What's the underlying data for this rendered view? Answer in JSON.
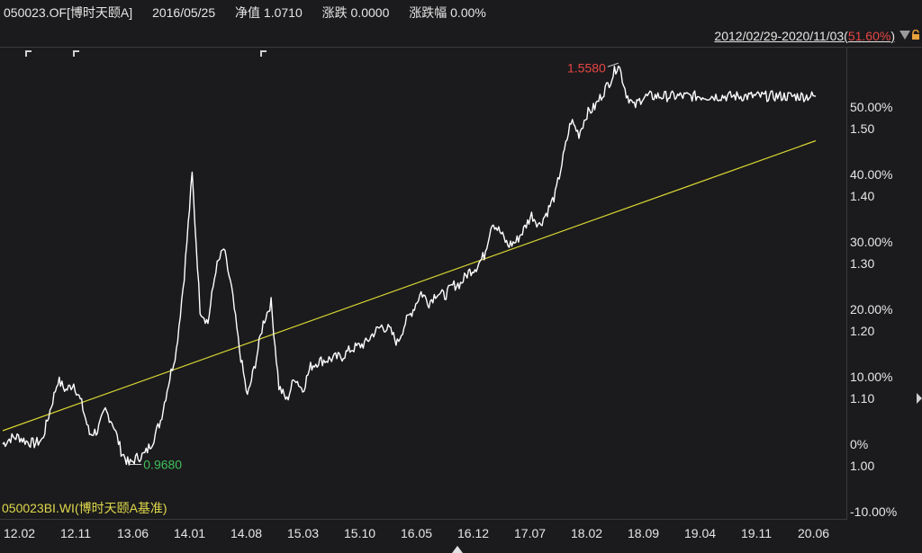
{
  "header": {
    "code": "050023.OF[博时天颐A]",
    "date": "2016/05/25",
    "nav": "净值 1.0710",
    "change": "涨跌 0.0000",
    "change_pct": "涨跌幅 0.00%"
  },
  "range": {
    "text": "2012/02/29-2020/11/03(",
    "pct": "51.60%",
    "close": ")"
  },
  "benchmark_label": "050023BI.WI(博时天颐A基准)",
  "chart_data": {
    "type": "line",
    "title": "",
    "xlabel": "",
    "ylabel": "",
    "x_ticks": [
      "12.02",
      "12.11",
      "13.06",
      "14.01",
      "14.08",
      "15.03",
      "15.10",
      "16.05",
      "16.12",
      "17.07",
      "18.02",
      "18.09",
      "19.04",
      "19.11",
      "20.06"
    ],
    "y_ticks_pct": [
      "50.00%",
      "40.00%",
      "30.00%",
      "20.00%",
      "10.00%",
      "0%",
      "-10.00%"
    ],
    "y_ticks_nav": [
      "1.50",
      "1.40",
      "1.30",
      "1.20",
      "1.10",
      "1.00"
    ],
    "ylim_pct": [
      -10,
      57
    ],
    "grid": false,
    "annotations": {
      "max_label": "1.5580",
      "min_label": "0.9680"
    },
    "series": [
      {
        "name": "050023.OF",
        "color": "#ffffff",
        "x": [
          0,
          1,
          2,
          3,
          4,
          5,
          6,
          7,
          8,
          9,
          10,
          11,
          12,
          13,
          14,
          15,
          16,
          17,
          18,
          19,
          20,
          21,
          22,
          23,
          24,
          25,
          26,
          27,
          28,
          29,
          30,
          31,
          32,
          33,
          34,
          35,
          36,
          37,
          38,
          39,
          40,
          41,
          42,
          43,
          44,
          45,
          46,
          47,
          48,
          49,
          50,
          51,
          52,
          53,
          54,
          55,
          56,
          57,
          58,
          59,
          60,
          61,
          62,
          63,
          64,
          65,
          66,
          67,
          68,
          69,
          70,
          71,
          72,
          73,
          74,
          75,
          76,
          77,
          78,
          79,
          80,
          81,
          82,
          83,
          84,
          85,
          86,
          87,
          88,
          89,
          90,
          91,
          92,
          93,
          94,
          95,
          96,
          97,
          98,
          99,
          100,
          101,
          102,
          103
        ],
        "values": [
          0.0,
          0.9,
          1.1,
          0.4,
          0.1,
          0.6,
          5.0,
          9.5,
          8.0,
          9.0,
          6.0,
          1.5,
          2.0,
          5.0,
          3.0,
          -1.0,
          -3.0,
          -2.0,
          -1.5,
          0.5,
          3.5,
          9.0,
          14.0,
          25.0,
          40.0,
          20.0,
          18.0,
          26.0,
          29.0,
          23.0,
          14.0,
          7.0,
          12.0,
          18.0,
          21.0,
          8.5,
          6.5,
          10.0,
          8.0,
          11.5,
          12.3,
          12.5,
          12.8,
          13.0,
          14.0,
          14.5,
          15.0,
          16.5,
          17.5,
          17.0,
          15.0,
          18.0,
          20.0,
          22.5,
          21.0,
          22.5,
          22.0,
          23.5,
          23.8,
          25.5,
          26.3,
          28.0,
          33.0,
          31.5,
          29.5,
          30.0,
          31.8,
          34.0,
          32.5,
          34.5,
          37.0,
          42.5,
          48.0,
          46.0,
          49.0,
          50.0,
          52.0,
          54.0,
          56.5,
          52.0,
          50.0,
          51.4,
          51.6,
          51.6,
          51.6,
          51.6,
          51.6,
          51.6,
          51.6,
          51.6,
          51.6,
          51.6,
          51.6,
          51.6,
          51.6,
          51.6,
          51.6,
          51.6,
          51.6,
          51.6,
          51.6,
          51.6,
          51.6,
          51.6
        ]
      },
      {
        "name": "050023BI.WI(博时天颐A基准)",
        "color": "#d7d433",
        "x": [
          0,
          1
        ],
        "values": [
          2.0,
          45.0
        ]
      }
    ]
  }
}
